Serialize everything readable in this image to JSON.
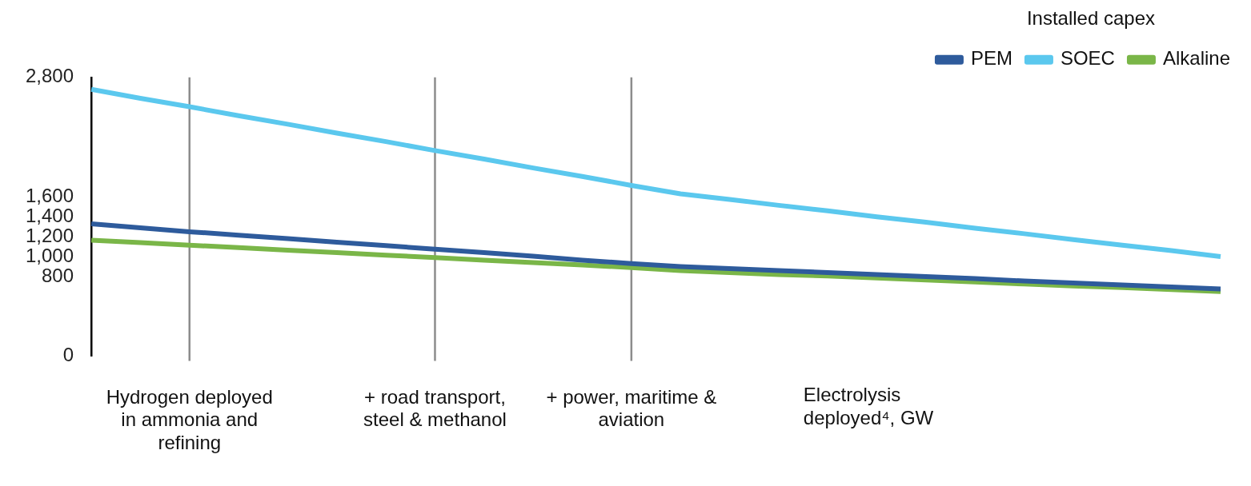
{
  "chart_data": {
    "type": "line",
    "legend_title": "Installed capex",
    "xlabel": "Electrolysis deployed⁴, GW",
    "categories": [
      null,
      null,
      "Hydrogen deployed in ammonia and refining",
      null,
      null,
      null,
      null,
      "+ road transport, steel & methanol",
      null,
      null,
      null,
      "+ power, maritime & aviation",
      null,
      null,
      null,
      null,
      null,
      null,
      null,
      null,
      null,
      null,
      null,
      null
    ],
    "series": [
      {
        "name": "PEM",
        "color": "#2e5b9c",
        "values": [
          1330,
          1290,
          1250,
          1215,
          1180,
          1145,
          1110,
          1075,
          1040,
          1005,
          965,
          930,
          900,
          880,
          860,
          840,
          820,
          800,
          780,
          755,
          735,
          715,
          695,
          675
        ]
      },
      {
        "name": "SOEC",
        "color": "#5bc8ee",
        "values": [
          2680,
          2590,
          2505,
          2415,
          2330,
          2240,
          2155,
          2065,
          1980,
          1890,
          1805,
          1715,
          1630,
          1575,
          1515,
          1460,
          1400,
          1345,
          1285,
          1230,
          1170,
          1115,
          1060,
          1000
        ]
      },
      {
        "name": "Alkaline",
        "color": "#7ab648",
        "values": [
          1165,
          1140,
          1115,
          1090,
          1065,
          1040,
          1015,
          990,
          965,
          940,
          915,
          890,
          860,
          840,
          820,
          805,
          785,
          765,
          745,
          725,
          705,
          690,
          670,
          650
        ]
      }
    ],
    "ylim": [
      0,
      2800
    ],
    "yticks": [
      0,
      800,
      {
        "value": 1000,
        "label": "1,000"
      },
      {
        "value": 1200,
        "label": "1,200"
      },
      {
        "value": 1400,
        "label": "1,400"
      },
      {
        "value": 1600,
        "label": "1,600"
      },
      {
        "value": 2800,
        "label": "2,800"
      }
    ],
    "grid": "x",
    "legend": "top right",
    "marker": "none",
    "line_style": "solid"
  }
}
